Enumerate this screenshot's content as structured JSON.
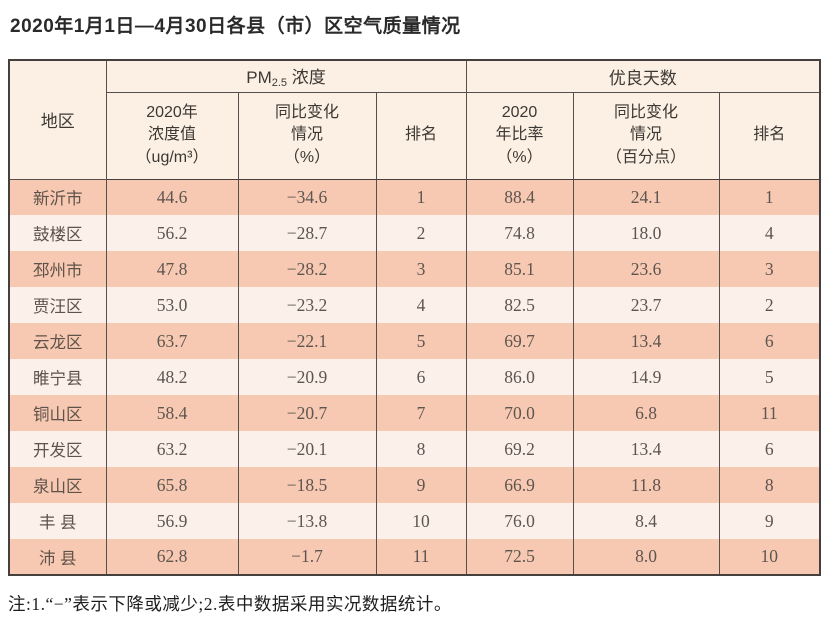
{
  "title": "2020年1月1日—4月30日各县（市）区空气质量情况",
  "table": {
    "region_header": "地区",
    "pm_group": {
      "prefix": "PM",
      "sub": "2.5",
      "suffix": " 浓度"
    },
    "days_group": "优良天数",
    "sub_headers": {
      "pm_value": "2020年\n浓度值\n（ug/m³）",
      "pm_change": "同比变化\n情况\n（%）",
      "pm_rank": "排名",
      "days_rate": "2020\n年比率\n（%）",
      "days_change": "同比变化\n情况\n（百分点）",
      "days_rank": "排名"
    },
    "column_keys": [
      "region",
      "pm_value",
      "pm_change",
      "pm_rank",
      "days_rate",
      "days_change",
      "days_rank"
    ],
    "rows": [
      {
        "region": "新沂市",
        "pm_value": "44.6",
        "pm_change": "−34.6",
        "pm_rank": "1",
        "days_rate": "88.4",
        "days_change": "24.1",
        "days_rank": "1"
      },
      {
        "region": "鼓楼区",
        "pm_value": "56.2",
        "pm_change": "−28.7",
        "pm_rank": "2",
        "days_rate": "74.8",
        "days_change": "18.0",
        "days_rank": "4"
      },
      {
        "region": "邳州市",
        "pm_value": "47.8",
        "pm_change": "−28.2",
        "pm_rank": "3",
        "days_rate": "85.1",
        "days_change": "23.6",
        "days_rank": "3"
      },
      {
        "region": "贾汪区",
        "pm_value": "53.0",
        "pm_change": "−23.2",
        "pm_rank": "4",
        "days_rate": "82.5",
        "days_change": "23.7",
        "days_rank": "2"
      },
      {
        "region": "云龙区",
        "pm_value": "63.7",
        "pm_change": "−22.1",
        "pm_rank": "5",
        "days_rate": "69.7",
        "days_change": "13.4",
        "days_rank": "6"
      },
      {
        "region": "睢宁县",
        "pm_value": "48.2",
        "pm_change": "−20.9",
        "pm_rank": "6",
        "days_rate": "86.0",
        "days_change": "14.9",
        "days_rank": "5"
      },
      {
        "region": "铜山区",
        "pm_value": "58.4",
        "pm_change": "−20.7",
        "pm_rank": "7",
        "days_rate": "70.0",
        "days_change": "6.8",
        "days_rank": "11"
      },
      {
        "region": "开发区",
        "pm_value": "63.2",
        "pm_change": "−20.1",
        "pm_rank": "8",
        "days_rate": "69.2",
        "days_change": "13.4",
        "days_rank": "6"
      },
      {
        "region": "泉山区",
        "pm_value": "65.8",
        "pm_change": "−18.5",
        "pm_rank": "9",
        "days_rate": "66.9",
        "days_change": "11.8",
        "days_rank": "8"
      },
      {
        "region": "丰 县",
        "pm_value": "56.9",
        "pm_change": "−13.8",
        "pm_rank": "10",
        "days_rate": "76.0",
        "days_change": "8.4",
        "days_rank": "9"
      },
      {
        "region": "沛 县",
        "pm_value": "62.8",
        "pm_change": "−1.7",
        "pm_rank": "11",
        "days_rate": "72.5",
        "days_change": "8.0",
        "days_rank": "10"
      }
    ]
  },
  "note": "注:1.“−”表示下降或减少;2.表中数据采用实况数据统计。",
  "colors": {
    "row_odd": "#f8c9b2",
    "row_even": "#fcf1ea",
    "header_bg": "#fbf0e3",
    "border_dark": "#45403d",
    "border_inner": "#55504c"
  }
}
